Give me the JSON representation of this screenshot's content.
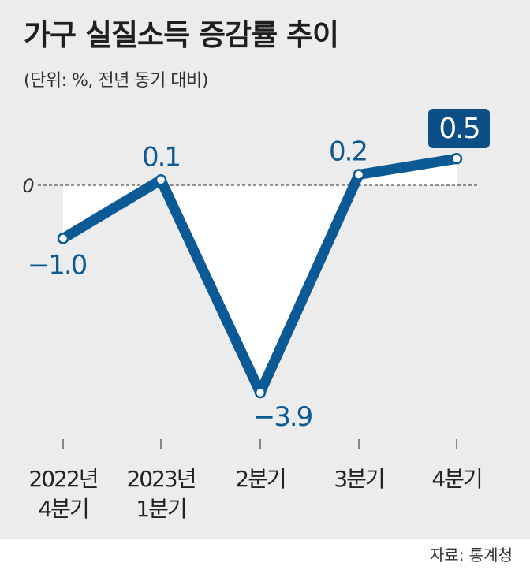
{
  "header": {
    "title": "가구 실질소득 증감률 추이",
    "subtitle": "(단위: %, 전년 동기 대비)"
  },
  "source": "자료: 통계청",
  "colors": {
    "line": "#0b5a96",
    "highlight_box": "#0b4f86",
    "text": "#1f1f1f",
    "fill_area": "#ffffff"
  },
  "chart_data": {
    "type": "line",
    "title": "가구 실질소득 증감률 추이",
    "subtitle": "(단위: %, 전년 동기 대비)",
    "categories": [
      [
        "2022년",
        "4분기"
      ],
      [
        "2023년",
        "1분기"
      ],
      [
        "2분기"
      ],
      [
        "3분기"
      ],
      [
        "4분기"
      ]
    ],
    "values": [
      -1.0,
      0.1,
      -3.9,
      0.2,
      0.5
    ],
    "value_labels": [
      "−1.0",
      "0.1",
      "−3.9",
      "0.2",
      "0.5"
    ],
    "highlighted_index": 4,
    "zero_label": "0",
    "ylim": [
      -4.5,
      0.8
    ],
    "grid": false,
    "zero_line": "dashed",
    "legend": "none"
  }
}
